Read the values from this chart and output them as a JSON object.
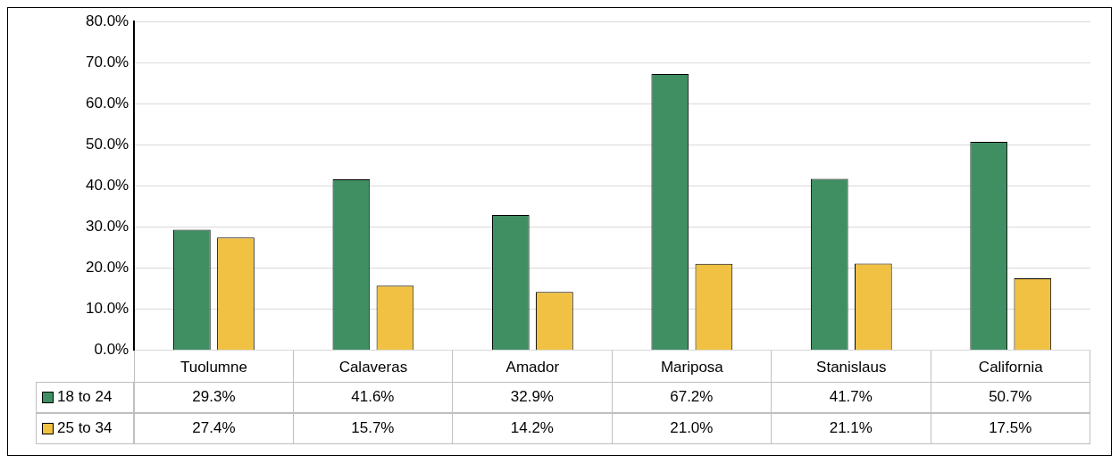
{
  "chart_data": {
    "type": "bar",
    "categories": [
      "Tuolumne",
      "Calaveras",
      "Amador",
      "Mariposa",
      "Stanislaus",
      "California"
    ],
    "series": [
      {
        "name": "18 to 24",
        "color": "#3f8f63",
        "values": [
          29.3,
          41.6,
          32.9,
          67.2,
          41.7,
          50.7
        ],
        "value_labels": [
          "29.3%",
          "41.6%",
          "32.9%",
          "67.2%",
          "41.7%",
          "50.7%"
        ]
      },
      {
        "name": "25 to 34",
        "color": "#f0c143",
        "values": [
          27.4,
          15.7,
          14.2,
          21.0,
          21.1,
          17.5
        ],
        "value_labels": [
          "27.4%",
          "15.7%",
          "14.2%",
          "21.0%",
          "21.1%",
          "17.5%"
        ]
      }
    ],
    "ylim": [
      0,
      80
    ],
    "yticks": [
      {
        "value": 0,
        "label": "0.0%"
      },
      {
        "value": 10,
        "label": "10.0%"
      },
      {
        "value": 20,
        "label": "20.0%"
      },
      {
        "value": 30,
        "label": "30.0%"
      },
      {
        "value": 40,
        "label": "40.0%"
      },
      {
        "value": 50,
        "label": "50.0%"
      },
      {
        "value": 60,
        "label": "60.0%"
      },
      {
        "value": 70,
        "label": "70.0%"
      },
      {
        "value": 80,
        "label": "80.0%"
      }
    ],
    "grid": "y",
    "legend": "bottom left"
  }
}
